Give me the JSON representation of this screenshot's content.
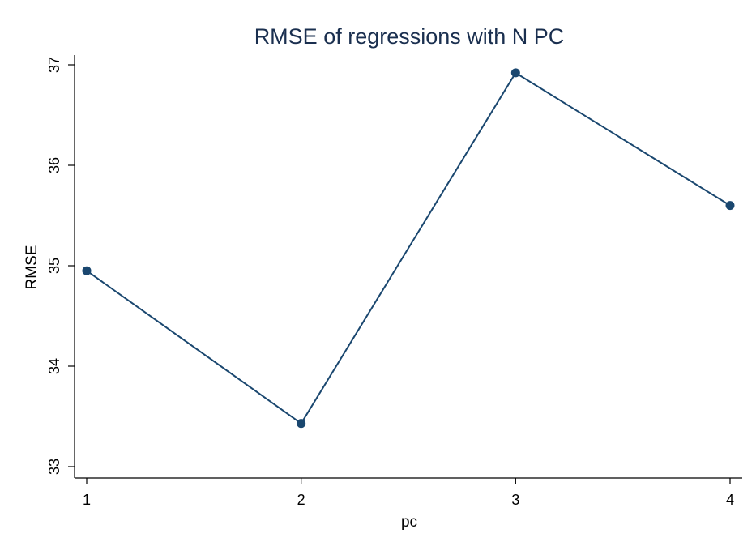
{
  "chart_data": {
    "type": "line",
    "title": "RMSE of regressions with N PC",
    "xlabel": "pc",
    "ylabel": "RMSE",
    "x": [
      1,
      2,
      3,
      4
    ],
    "xticks": [
      "1",
      "2",
      "3",
      "4"
    ],
    "xlim": [
      1,
      4
    ],
    "yticks": [
      "33",
      "34",
      "35",
      "36",
      "37"
    ],
    "ylim": [
      33,
      37
    ],
    "grid": false,
    "series": [
      {
        "values": [
          34.95,
          33.43,
          36.92,
          35.6
        ],
        "color": "#1a476f"
      }
    ]
  }
}
